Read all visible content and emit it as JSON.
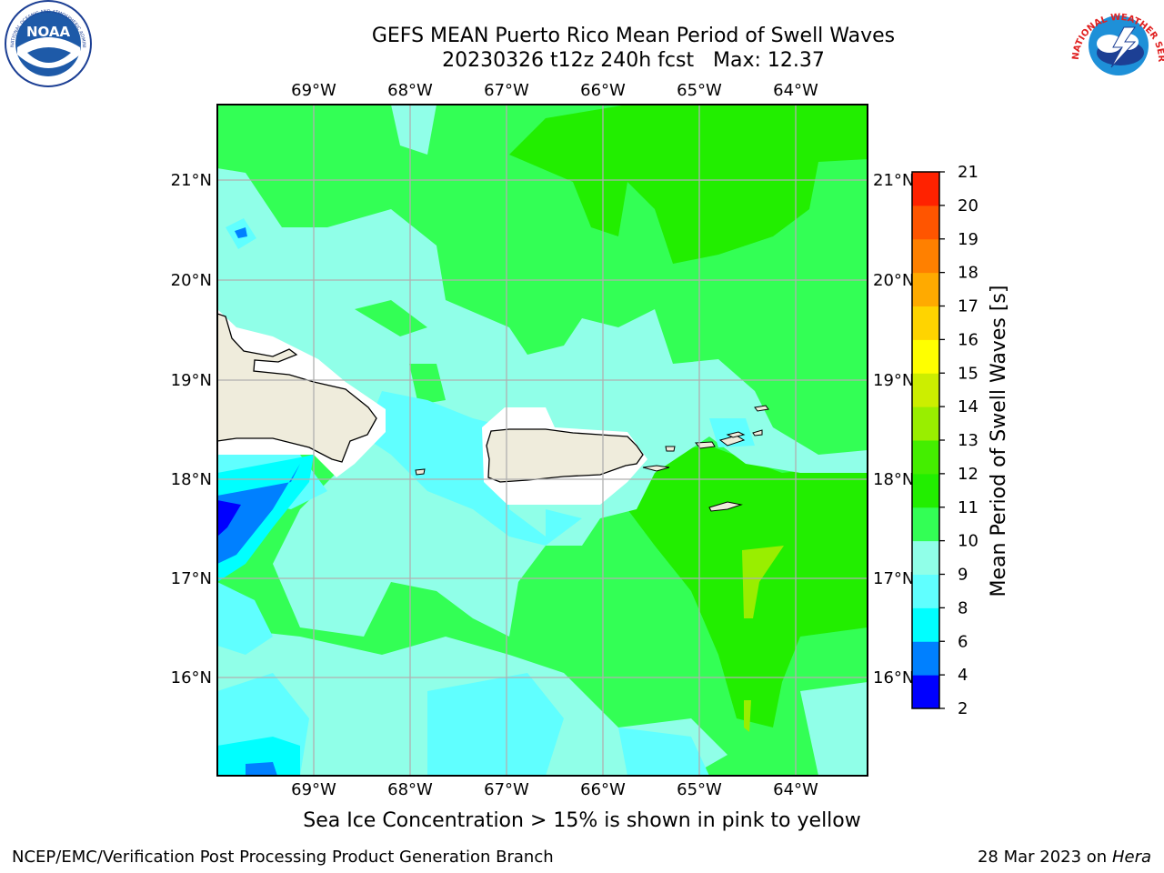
{
  "title": {
    "line1": "GEFS MEAN Puerto Rico Mean Period of Swell Waves",
    "line2": "20230326 t12z 240h fcst   Max: 12.37"
  },
  "subcaption": "Sea Ice Concentration > 15% is shown in pink to yellow",
  "footer": {
    "left": "NCEP/EMC/Verification Post Processing Product Generation Branch",
    "right_date": "28 Mar 2023 on",
    "right_host": "Hera"
  },
  "logos": {
    "noaa": {
      "text": "NOAA",
      "ring_text": "NATIONAL OCEANIC AND ATMOSPHERIC ADMINISTRATION · U.S. DEPARTMENT OF COMMERCE"
    },
    "nws": {
      "ring_text": "NATIONAL WEATHER SERVICE"
    }
  },
  "map": {
    "lon_labels": [
      "69°W",
      "68°W",
      "67°W",
      "66°W",
      "65°W",
      "64°W"
    ],
    "lat_labels": [
      "21°N",
      "20°N",
      "19°N",
      "18°N",
      "17°N",
      "16°N"
    ],
    "land_color": "#efecdc",
    "grid_color": "#b0b0b0"
  },
  "colorbar": {
    "label": "Mean Period of Swell Waves [s]",
    "ticks": [
      "2",
      "4",
      "6",
      "8",
      "9",
      "10",
      "11",
      "12",
      "13",
      "14",
      "15",
      "16",
      "17",
      "18",
      "19",
      "20",
      "21"
    ],
    "colors": [
      "#0000ff",
      "#0080ff",
      "#00ffff",
      "#60ffff",
      "#90ffe8",
      "#33ff55",
      "#22ee00",
      "#44ee00",
      "#99ee00",
      "#ccee00",
      "#ffff00",
      "#ffd400",
      "#ffaa00",
      "#ff8000",
      "#ff5500",
      "#ff2200"
    ]
  }
}
